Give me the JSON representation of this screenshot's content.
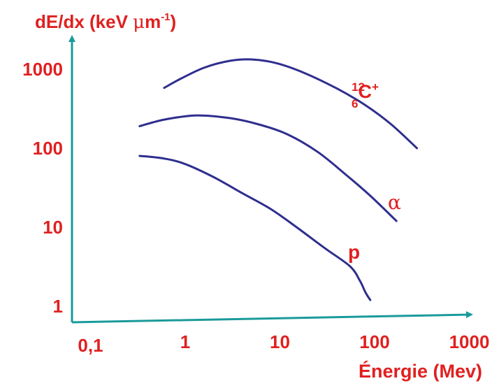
{
  "colors": {
    "text": "#e02020",
    "axis": "#1a9a9a",
    "curve": "#2e2e8f"
  },
  "chart_data": {
    "type": "line",
    "ylabel_parts": {
      "main": "dE/dx (keV ",
      "mu": "μ",
      "m": "m",
      "exp": "-1",
      "close": ")"
    },
    "xlabel": "Énergie (Mev)",
    "x_scale": "log",
    "y_scale": "log",
    "xlim": [
      0.05,
      1200
    ],
    "ylim": [
      1,
      2200
    ],
    "xticks": [
      0.1,
      1,
      10,
      100,
      1000
    ],
    "xtick_labels": [
      "0,1",
      "1",
      "10",
      "100",
      "1000"
    ],
    "yticks": [
      1,
      10,
      100,
      1000
    ],
    "ytick_labels": [
      "1",
      "10",
      "100",
      "1000"
    ],
    "series_labels": {
      "carbon": {
        "mass": "12",
        "z": "6",
        "sym": "C",
        "charge": "+"
      },
      "alpha": "α",
      "proton": "p"
    },
    "series": [
      {
        "id": "carbon",
        "x": [
          0.6,
          0.9,
          1.6,
          3,
          5,
          9,
          18,
          40,
          80,
          150,
          280
        ],
        "y": [
          580,
          760,
          1050,
          1280,
          1330,
          1200,
          900,
          570,
          350,
          200,
          100
        ]
      },
      {
        "id": "alpha",
        "x": [
          0.33,
          0.6,
          1.3,
          3,
          6,
          12,
          25,
          50,
          90,
          170
        ],
        "y": [
          190,
          230,
          260,
          240,
          200,
          150,
          90,
          46,
          25,
          12
        ]
      },
      {
        "id": "proton",
        "x": [
          0.33,
          0.6,
          1,
          2,
          4,
          8,
          15,
          30,
          55,
          70,
          80,
          90
        ],
        "y": [
          80,
          74,
          63,
          43,
          27,
          17,
          10,
          5.4,
          3.2,
          2.1,
          1.5,
          1.2
        ]
      }
    ]
  }
}
